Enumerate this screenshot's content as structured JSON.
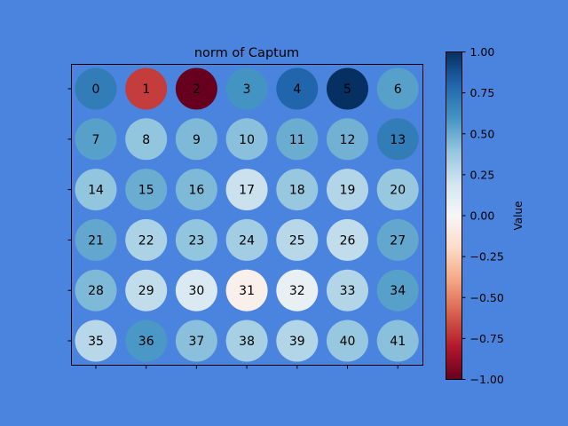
{
  "chart_data": {
    "type": "heatmap",
    "title": "norm of Captum",
    "colorbar_label": "Value",
    "colormap": "RdBu",
    "vmin": -1.0,
    "vmax": 1.0,
    "colorbar_ticks": [
      "1.00",
      "0.75",
      "0.50",
      "0.25",
      "0.00",
      "−0.25",
      "−0.50",
      "−0.75",
      "−1.00"
    ],
    "colorbar_tick_values": [
      1.0,
      0.75,
      0.5,
      0.25,
      0.0,
      -0.25,
      -0.5,
      -0.75,
      -1.0
    ],
    "rows": 6,
    "cols": 7,
    "cells": [
      {
        "label": "0",
        "value": 0.7
      },
      {
        "label": "1",
        "value": -0.7
      },
      {
        "label": "2",
        "value": -1.0
      },
      {
        "label": "3",
        "value": 0.6
      },
      {
        "label": "4",
        "value": 0.8
      },
      {
        "label": "5",
        "value": 1.0
      },
      {
        "label": "6",
        "value": 0.55
      },
      {
        "label": "7",
        "value": 0.55
      },
      {
        "label": "8",
        "value": 0.4
      },
      {
        "label": "9",
        "value": 0.45
      },
      {
        "label": "10",
        "value": 0.42
      },
      {
        "label": "11",
        "value": 0.5
      },
      {
        "label": "12",
        "value": 0.48
      },
      {
        "label": "13",
        "value": 0.7
      },
      {
        "label": "14",
        "value": 0.4
      },
      {
        "label": "15",
        "value": 0.5
      },
      {
        "label": "16",
        "value": 0.45
      },
      {
        "label": "17",
        "value": 0.22
      },
      {
        "label": "18",
        "value": 0.38
      },
      {
        "label": "19",
        "value": 0.3
      },
      {
        "label": "20",
        "value": 0.38
      },
      {
        "label": "21",
        "value": 0.52
      },
      {
        "label": "22",
        "value": 0.32
      },
      {
        "label": "23",
        "value": 0.4
      },
      {
        "label": "24",
        "value": 0.35
      },
      {
        "label": "25",
        "value": 0.28
      },
      {
        "label": "26",
        "value": 0.25
      },
      {
        "label": "27",
        "value": 0.52
      },
      {
        "label": "28",
        "value": 0.45
      },
      {
        "label": "29",
        "value": 0.25
      },
      {
        "label": "30",
        "value": 0.15
      },
      {
        "label": "31",
        "value": -0.05
      },
      {
        "label": "32",
        "value": 0.08
      },
      {
        "label": "33",
        "value": 0.3
      },
      {
        "label": "34",
        "value": 0.55
      },
      {
        "label": "35",
        "value": 0.28
      },
      {
        "label": "36",
        "value": 0.58
      },
      {
        "label": "37",
        "value": 0.42
      },
      {
        "label": "38",
        "value": 0.33
      },
      {
        "label": "39",
        "value": 0.3
      },
      {
        "label": "40",
        "value": 0.38
      },
      {
        "label": "41",
        "value": 0.42
      }
    ]
  }
}
